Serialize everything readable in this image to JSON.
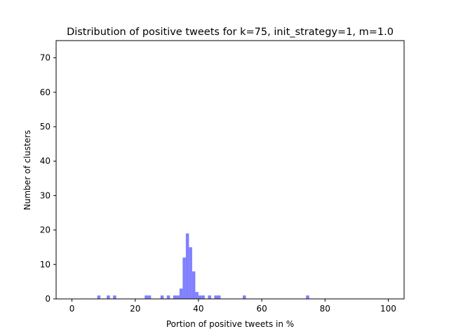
{
  "chart_data": {
    "type": "bar",
    "title": "Distribution of positive tweets for k=75, init_strategy=1, m=1.0",
    "xlabel": "Portion of positive tweets in %",
    "ylabel": "Number of clusters",
    "xlim": [
      -5,
      105
    ],
    "ylim": [
      0,
      75
    ],
    "xticks": [
      0,
      20,
      40,
      60,
      80,
      100
    ],
    "yticks": [
      0,
      10,
      20,
      30,
      40,
      50,
      60,
      70
    ],
    "bin_width": 1,
    "grid": false,
    "bar_color": "#8080ff",
    "bins": [
      {
        "x": 8,
        "count": 1
      },
      {
        "x": 11,
        "count": 1
      },
      {
        "x": 13,
        "count": 1
      },
      {
        "x": 23,
        "count": 1
      },
      {
        "x": 24,
        "count": 1
      },
      {
        "x": 28,
        "count": 1
      },
      {
        "x": 30,
        "count": 1
      },
      {
        "x": 32,
        "count": 1
      },
      {
        "x": 33,
        "count": 1
      },
      {
        "x": 34,
        "count": 3
      },
      {
        "x": 35,
        "count": 12
      },
      {
        "x": 36,
        "count": 19
      },
      {
        "x": 37,
        "count": 15
      },
      {
        "x": 38,
        "count": 8
      },
      {
        "x": 39,
        "count": 2
      },
      {
        "x": 40,
        "count": 1
      },
      {
        "x": 41,
        "count": 1
      },
      {
        "x": 43,
        "count": 1
      },
      {
        "x": 45,
        "count": 1
      },
      {
        "x": 46,
        "count": 1
      },
      {
        "x": 54,
        "count": 1
      },
      {
        "x": 74,
        "count": 1
      }
    ]
  }
}
